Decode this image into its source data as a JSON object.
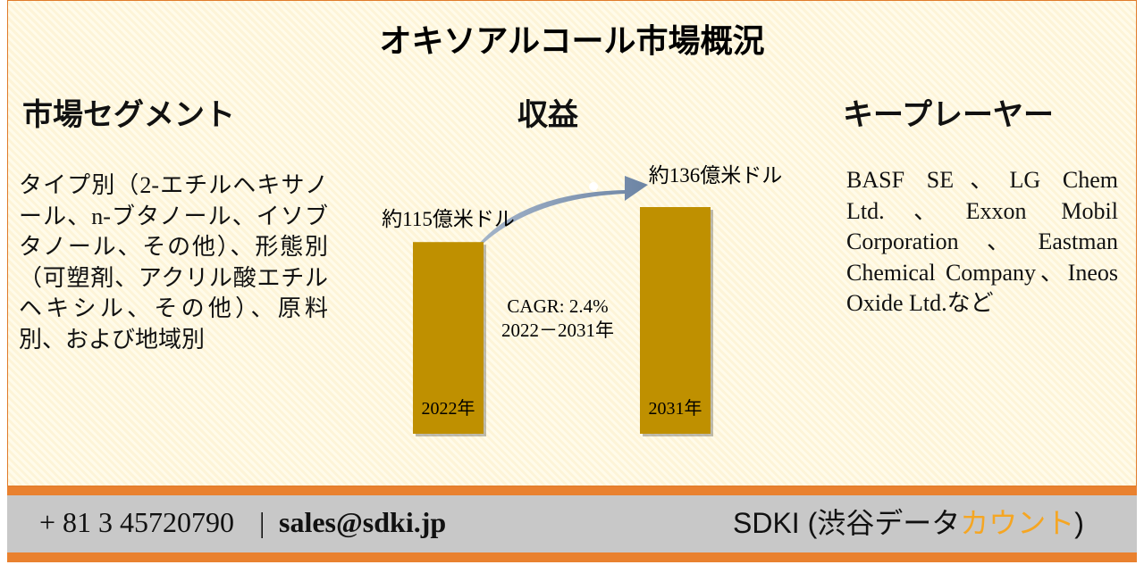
{
  "title": "オキソアルコール市場概況",
  "segment": {
    "heading": "市場セグメント",
    "text": "タイプ別（2-エチルヘキサノール、n-ブタノール、イソブタノール、その他）、形態別（可塑剤、アクリル酸エチルヘキシル、その他）、原料別、および地域別"
  },
  "players": {
    "heading": "キープレーヤー",
    "text": "BASF SE、LG Chem Ltd.、Exxon Mobil Corporation、Eastman Chemical Company、Ineos Oxide Ltd.など"
  },
  "chart_data": {
    "type": "bar",
    "title": "収益",
    "categories": [
      "2022年",
      "2031年"
    ],
    "values": [
      115,
      136
    ],
    "value_labels": [
      "約115億米ドル",
      "約136億米ドル"
    ],
    "color": "#bf9000",
    "annotations": [
      "CAGR: 2.4%",
      "2022－2031年"
    ]
  },
  "footer": {
    "phone": "+ 81 3 45720790",
    "separator": "|",
    "email": "sales@sdki.jp",
    "brand": "SDKI (渋谷データ",
    "brand_accent": "カウント",
    "brand_end": ")"
  }
}
